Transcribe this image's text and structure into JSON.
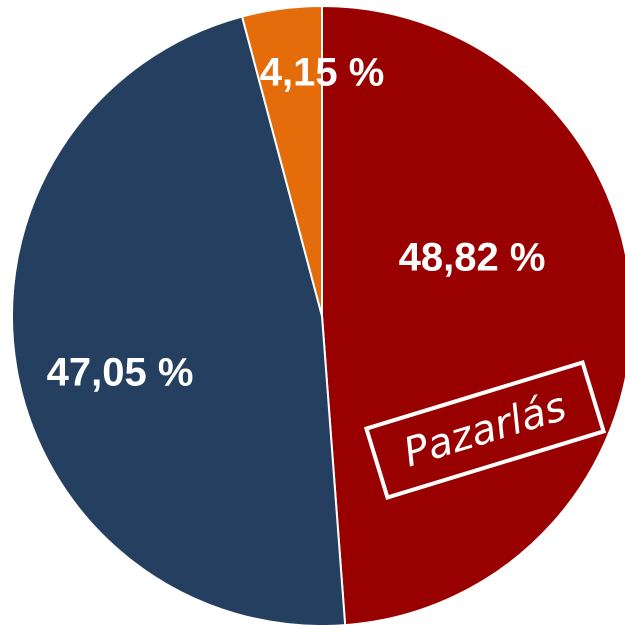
{
  "chart_data": {
    "type": "pie",
    "categories": [
      null,
      null,
      null
    ],
    "values": [
      48.82,
      47.05,
      4.15
    ],
    "value_labels": [
      "48,82 %",
      "47,05 %",
      "4,15 %"
    ],
    "colors": [
      "#990000",
      "#243f60",
      "#e46c0a"
    ],
    "annotation": "Pazarlás"
  }
}
